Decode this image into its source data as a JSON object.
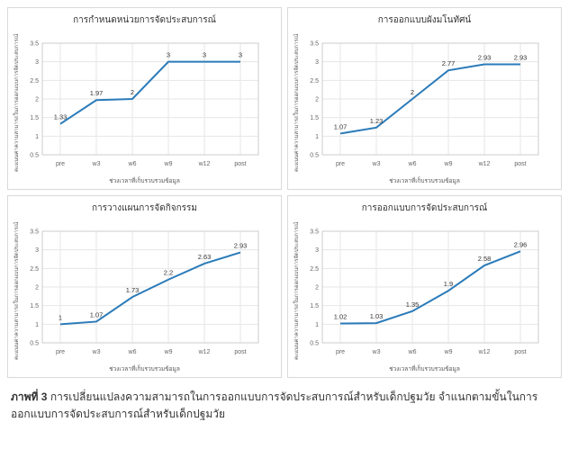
{
  "categories": [
    "pre",
    "w3",
    "w6",
    "w9",
    "w12",
    "post"
  ],
  "ylim": [
    0.5,
    3.5
  ],
  "yticks": [
    0.5,
    1,
    1.5,
    2,
    2.5,
    3,
    3.5
  ],
  "line_color": "#2b7bb9",
  "grid_color": "#e6e6e6",
  "axis_color": "#cccccc",
  "tick_label_color": "#666666",
  "value_label_color": "#333333",
  "title_color": "#333333",
  "background_color": "#ffffff",
  "tick_fontsize": 7,
  "value_fontsize": 7.5,
  "title_fontsize": 10,
  "line_width": 2,
  "xlabel": "ช่วงเวลาที่เก็บรวบรวมข้อมูล",
  "ylabel": "คะแนนค่าความสามารถในการออกแบบการจัดประสบการณ์",
  "panels": [
    {
      "title": "การกำหนดหน่วยการจัดประสบการณ์",
      "values": [
        1.33,
        1.97,
        2,
        3,
        3,
        3
      ]
    },
    {
      "title": "การออกแบบผังมโนทัศน์",
      "values": [
        1.07,
        1.23,
        2,
        2.77,
        2.93,
        2.93
      ]
    },
    {
      "title": "การวางแผนการจัดกิจกรรม",
      "values": [
        1,
        1.07,
        1.73,
        2.2,
        2.63,
        2.93
      ]
    },
    {
      "title": "การออกแบบการจัดประสบการณ์",
      "values": [
        1.02,
        1.03,
        1.35,
        1.9,
        2.58,
        2.96
      ]
    }
  ],
  "caption": {
    "label": "ภาพที่ 3",
    "text": "การเปลี่ยนแปลงความสามารถในการออกแบบการจัดประสบการณ์สำหรับเด็กปฐมวัย จำแนกตามขั้นในการออกแบบการจัดประสบการณ์สำหรับเด็กปฐมวัย"
  }
}
